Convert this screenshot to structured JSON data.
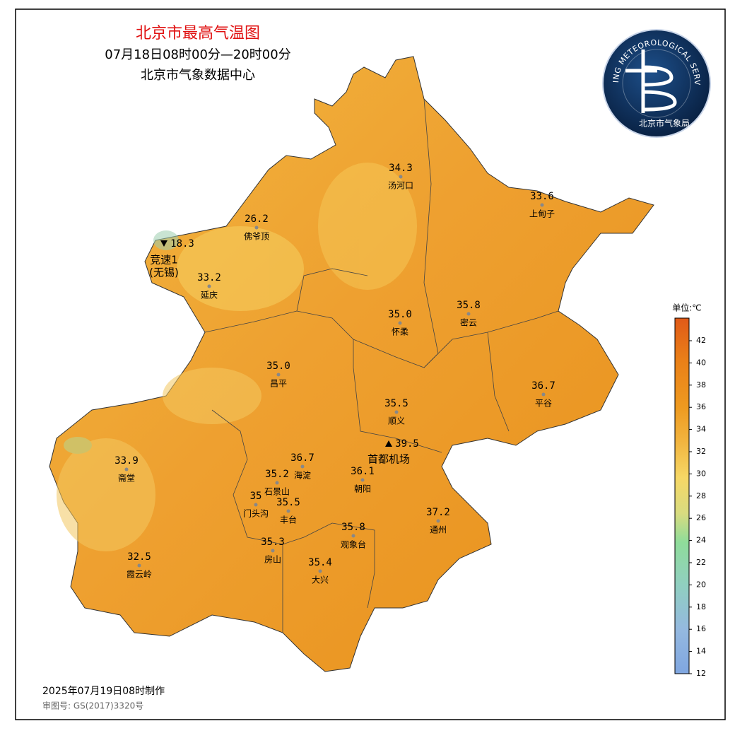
{
  "header": {
    "title": "北京市最高气温图",
    "period": "07月18日08时00分—20时00分",
    "source": "北京市气象数据中心"
  },
  "logo": {
    "arc_text": "BEIJING METEOROLOGICAL SERVICE",
    "name": "北京市气象局"
  },
  "stations": [
    {
      "name": "汤河口",
      "value": "34.3"
    },
    {
      "name": "上甸子",
      "value": "33.6"
    },
    {
      "name": "佛爷顶",
      "value": "26.2"
    },
    {
      "name": "竞速1",
      "note": "(无锡)",
      "value": "18.3"
    },
    {
      "name": "延庆",
      "value": "33.2"
    },
    {
      "name": "怀柔",
      "value": "35.0"
    },
    {
      "name": "密云",
      "value": "35.8"
    },
    {
      "name": "昌平",
      "value": "35.0"
    },
    {
      "name": "平谷",
      "value": "36.7"
    },
    {
      "name": "顺义",
      "value": "35.5"
    },
    {
      "name": "首都机场",
      "value": "39.5"
    },
    {
      "name": "海淀",
      "value": "36.7"
    },
    {
      "name": "石景山",
      "value": "35.2"
    },
    {
      "name": "斋堂",
      "value": "33.9"
    },
    {
      "name": "朝阳",
      "value": "36.1"
    },
    {
      "name": "门头沟",
      "value": "35"
    },
    {
      "name": "丰台",
      "value": "35.5"
    },
    {
      "name": "通州",
      "value": "37.2"
    },
    {
      "name": "观象台",
      "value": "35.8"
    },
    {
      "name": "房山",
      "value": "35.3"
    },
    {
      "name": "霞云岭",
      "value": "32.5"
    },
    {
      "name": "大兴",
      "value": "35.4"
    }
  ],
  "legend": {
    "unit": "单位:℃",
    "ticks": [
      12,
      14,
      16,
      18,
      20,
      22,
      24,
      26,
      28,
      30,
      32,
      34,
      36,
      38,
      40,
      42
    ]
  },
  "footer": {
    "made": "2025年07月19日08时制作",
    "approval": "审图号: GS(2017)3320号"
  }
}
